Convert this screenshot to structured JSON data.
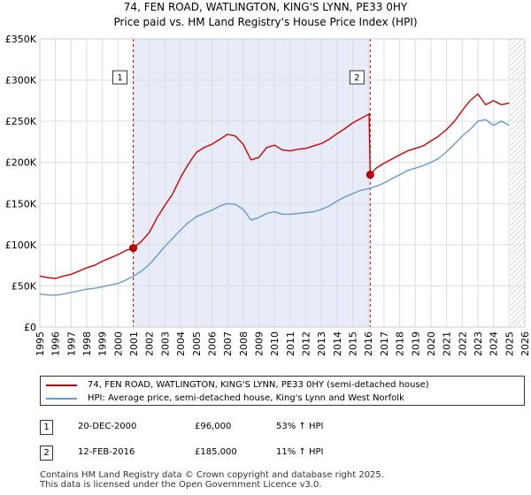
{
  "chart_data": {
    "type": "line",
    "title": [
      "74, FEN ROAD, WATLINGTON, KING'S LYNN, PE33 0HY",
      "Price paid vs. HM Land Registry's House Price Index (HPI)"
    ],
    "xlim": [
      1995,
      2026
    ],
    "ylim": [
      0,
      350000
    ],
    "x_ticks": [
      "1995",
      "1996",
      "1997",
      "1998",
      "1999",
      "2000",
      "2001",
      "2002",
      "2003",
      "2004",
      "2005",
      "2006",
      "2007",
      "2008",
      "2009",
      "2010",
      "2011",
      "2012",
      "2013",
      "2014",
      "2015",
      "2016",
      "2017",
      "2018",
      "2019",
      "2020",
      "2021",
      "2022",
      "2023",
      "2024",
      "2025",
      "2026"
    ],
    "y_ticks": [
      {
        "value": 0,
        "label": "£0"
      },
      {
        "value": 50000,
        "label": "£50K"
      },
      {
        "value": 100000,
        "label": "£100K"
      },
      {
        "value": 150000,
        "label": "£150K"
      },
      {
        "value": 200000,
        "label": "£200K"
      },
      {
        "value": 250000,
        "label": "£250K"
      },
      {
        "value": 300000,
        "label": "£300K"
      },
      {
        "value": 350000,
        "label": "£350K"
      }
    ],
    "shaded_period": [
      2000.97,
      2016.12
    ],
    "future_hatch_start": 2025.1,
    "series": [
      {
        "name": "74, FEN ROAD, WATLINGTON, KING'S LYNN, PE33 0HY (semi-detached house)",
        "color": "#cc0000",
        "x": [
          1995.0,
          1995.5,
          1996.0,
          1996.5,
          1997.0,
          1997.5,
          1998.0,
          1998.5,
          1999.0,
          1999.5,
          2000.0,
          2000.5,
          2000.97,
          2001.5,
          2002.0,
          2002.5,
          2003.0,
          2003.5,
          2004.0,
          2004.5,
          2005.0,
          2005.5,
          2006.0,
          2006.5,
          2007.0,
          2007.5,
          2008.0,
          2008.5,
          2009.0,
          2009.5,
          2010.0,
          2010.5,
          2011.0,
          2011.5,
          2012.0,
          2012.5,
          2013.0,
          2013.5,
          2014.0,
          2014.5,
          2015.0,
          2015.5,
          2016.05,
          2016.12,
          2016.5,
          2017.0,
          2017.5,
          2018.0,
          2018.5,
          2019.0,
          2019.5,
          2020.0,
          2020.5,
          2021.0,
          2021.5,
          2022.0,
          2022.5,
          2023.0,
          2023.5,
          2024.0,
          2024.5,
          2025.0
        ],
        "y": [
          62000,
          60000,
          59000,
          62000,
          64000,
          68000,
          72000,
          75000,
          80000,
          84000,
          88000,
          93000,
          96000,
          104000,
          115000,
          133000,
          148000,
          162000,
          182000,
          198000,
          212000,
          218000,
          222000,
          228000,
          234000,
          232000,
          222000,
          203000,
          206000,
          218000,
          221000,
          215000,
          214000,
          216000,
          217000,
          220000,
          223000,
          228000,
          235000,
          241000,
          248000,
          253000,
          259000,
          185000,
          193000,
          199000,
          204000,
          209000,
          214000,
          217000,
          220000,
          226000,
          232000,
          240000,
          250000,
          263000,
          275000,
          283000,
          270000,
          275000,
          270000,
          272000
        ]
      },
      {
        "name": "HPI: Average price, semi-detached house, King's Lynn and West Norfolk",
        "color": "#6699cc",
        "x": [
          1995.0,
          1995.5,
          1996.0,
          1996.5,
          1997.0,
          1997.5,
          1998.0,
          1998.5,
          1999.0,
          1999.5,
          2000.0,
          2000.5,
          2001.0,
          2001.5,
          2002.0,
          2002.5,
          2003.0,
          2003.5,
          2004.0,
          2004.5,
          2005.0,
          2005.5,
          2006.0,
          2006.5,
          2007.0,
          2007.5,
          2008.0,
          2008.5,
          2009.0,
          2009.5,
          2010.0,
          2010.5,
          2011.0,
          2011.5,
          2012.0,
          2012.5,
          2013.0,
          2013.5,
          2014.0,
          2014.5,
          2015.0,
          2015.5,
          2016.0,
          2016.5,
          2017.0,
          2017.5,
          2018.0,
          2018.5,
          2019.0,
          2019.5,
          2020.0,
          2020.5,
          2021.0,
          2021.5,
          2022.0,
          2022.5,
          2023.0,
          2023.5,
          2024.0,
          2024.5,
          2025.0
        ],
        "y": [
          40000,
          39000,
          38500,
          40000,
          42000,
          44000,
          46000,
          47000,
          49000,
          51000,
          53000,
          57000,
          62000,
          68000,
          76000,
          87000,
          98000,
          108000,
          118000,
          127000,
          134000,
          138000,
          142000,
          147000,
          150000,
          149000,
          143000,
          130000,
          133000,
          138000,
          140000,
          137000,
          137000,
          138000,
          139000,
          140000,
          143000,
          147000,
          153000,
          158000,
          162000,
          166000,
          168000,
          171000,
          175000,
          180000,
          185000,
          190000,
          193000,
          196000,
          200000,
          205000,
          213000,
          222000,
          232000,
          240000,
          250000,
          252000,
          245000,
          250000,
          245000
        ]
      }
    ],
    "sale_points": [
      {
        "label": "1",
        "x": 2000.97,
        "y": 96000
      },
      {
        "label": "2",
        "x": 2016.12,
        "y": 185000
      }
    ]
  },
  "legend": {
    "property_label": "74, FEN ROAD, WATLINGTON, KING'S LYNN, PE33 0HY (semi-detached house)",
    "hpi_label": "HPI: Average price, semi-detached house, King's Lynn and West Norfolk",
    "property_color": "#cc0000",
    "hpi_color": "#6699cc"
  },
  "transactions": [
    {
      "num": "1",
      "date": "20-DEC-2000",
      "price": "£96,000",
      "hpi": "53% ↑ HPI"
    },
    {
      "num": "2",
      "date": "12-FEB-2016",
      "price": "£185,000",
      "hpi": "11% ↑ HPI"
    }
  ],
  "footer": {
    "line1": "Contains HM Land Registry data © Crown copyright and database right 2025.",
    "line2": "This data is licensed under the Open Government Licence v3.0."
  }
}
